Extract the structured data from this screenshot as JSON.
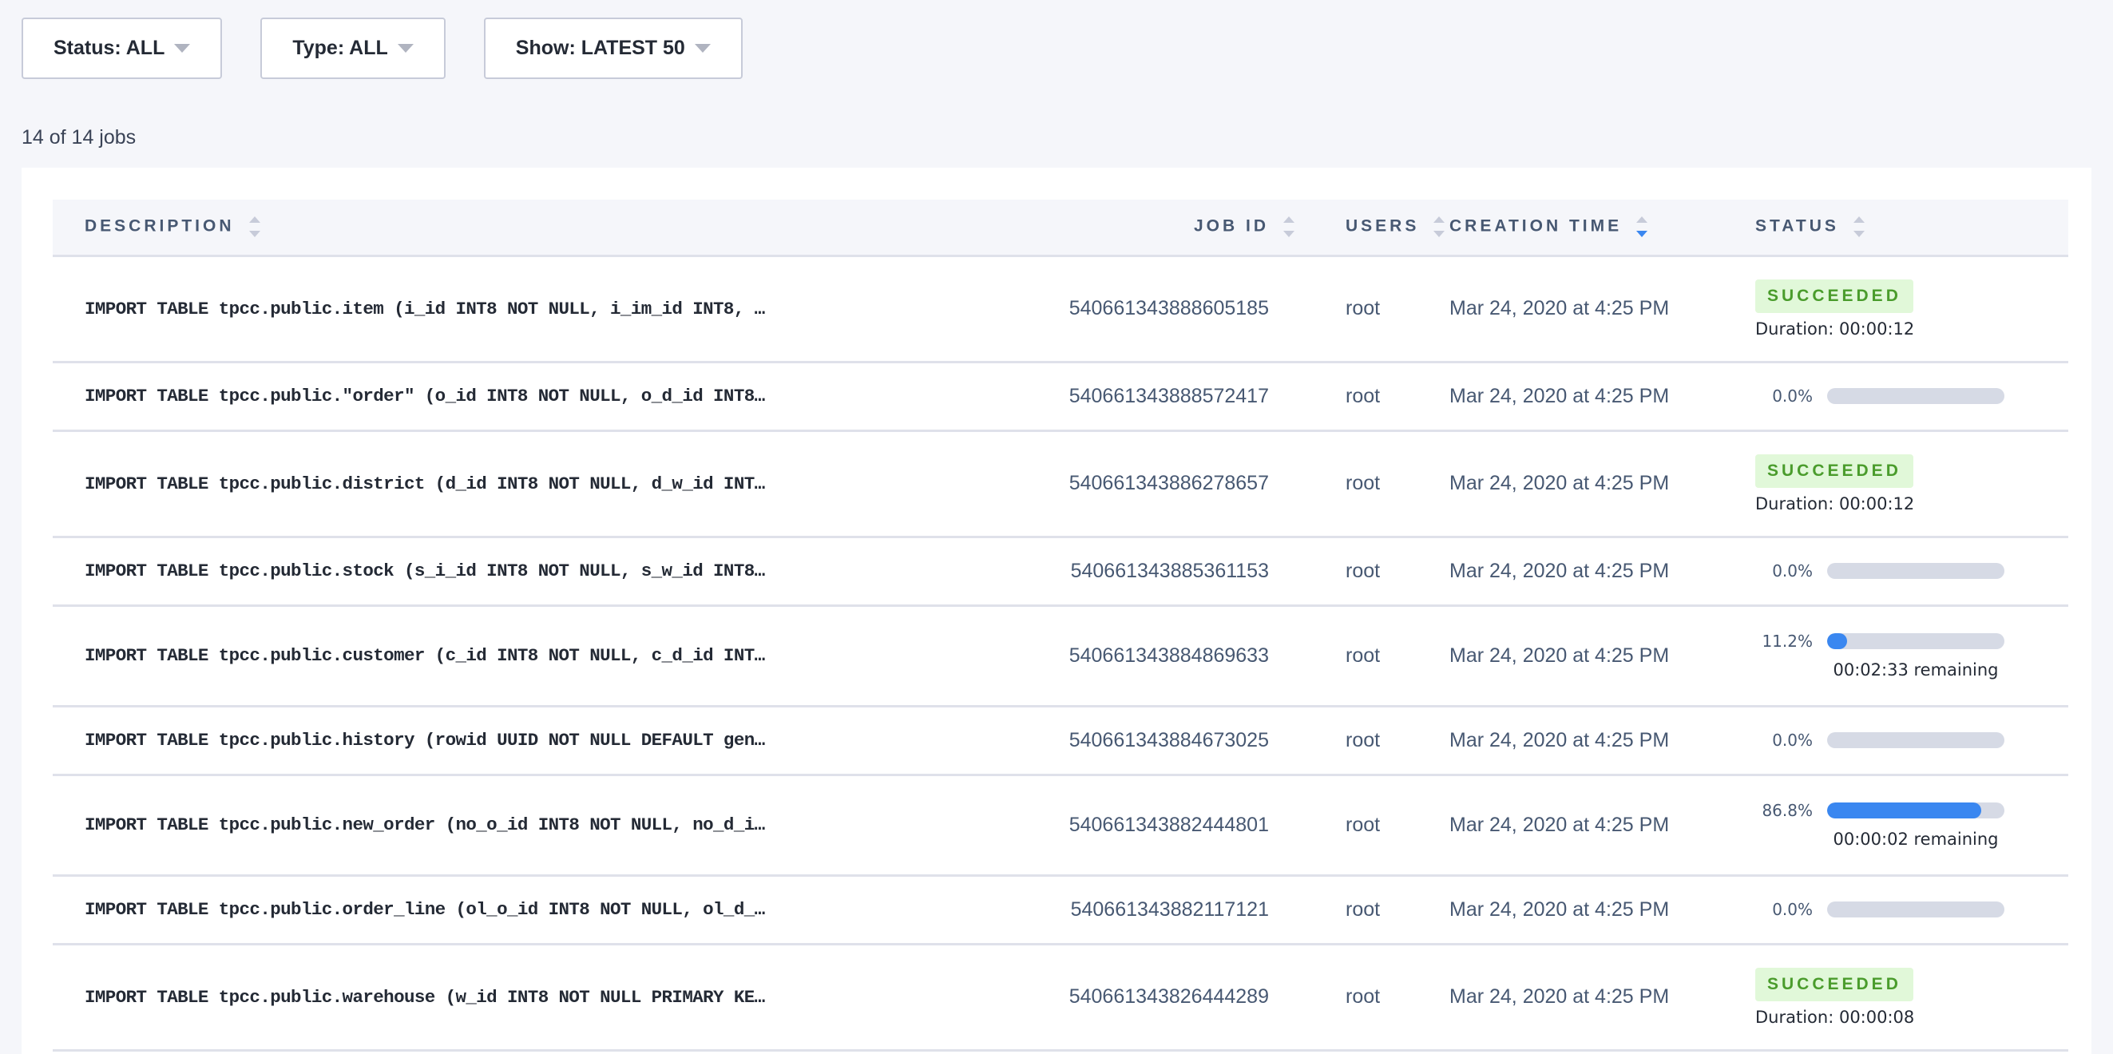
{
  "filters": [
    {
      "label": "Status: ALL"
    },
    {
      "label": "Type: ALL"
    },
    {
      "label": "Show: LATEST 50"
    }
  ],
  "job_count": "14 of 14 jobs",
  "table": {
    "columns": [
      {
        "label": "DESCRIPTION",
        "sort": "none"
      },
      {
        "label": "JOB ID",
        "sort": "none"
      },
      {
        "label": "USERS",
        "sort": "none"
      },
      {
        "label": "CREATION TIME",
        "sort": "descending"
      },
      {
        "label": "STATUS",
        "sort": "none"
      }
    ],
    "rows": [
      {
        "description": "IMPORT TABLE tpcc.public.item (i_id INT8 NOT NULL, i_im_id INT8, …",
        "job_id": "540661343888605185",
        "user": "root",
        "created": "Mar 24, 2020 at 4:25 PM",
        "status": "SUCCEEDED",
        "duration": "Duration: 00:00:12"
      },
      {
        "description": "IMPORT TABLE tpcc.public.\"order\" (o_id INT8 NOT NULL, o_d_id INT8…",
        "job_id": "540661343888572417",
        "user": "root",
        "created": "Mar 24, 2020 at 4:25 PM",
        "status": "running",
        "progress_label": "0.0%",
        "progress": 0.0
      },
      {
        "description": "IMPORT TABLE tpcc.public.district (d_id INT8 NOT NULL, d_w_id INT…",
        "job_id": "540661343886278657",
        "user": "root",
        "created": "Mar 24, 2020 at 4:25 PM",
        "status": "SUCCEEDED",
        "duration": "Duration: 00:00:12"
      },
      {
        "description": "IMPORT TABLE tpcc.public.stock (s_i_id INT8 NOT NULL, s_w_id INT8…",
        "job_id": "540661343885361153",
        "user": "root",
        "created": "Mar 24, 2020 at 4:25 PM",
        "status": "running",
        "progress_label": "0.0%",
        "progress": 0.0
      },
      {
        "description": "IMPORT TABLE tpcc.public.customer (c_id INT8 NOT NULL, c_d_id INT…",
        "job_id": "540661343884869633",
        "user": "root",
        "created": "Mar 24, 2020 at 4:25 PM",
        "status": "running",
        "progress_label": "11.2%",
        "progress": 11.2,
        "remaining": "00:02:33 remaining"
      },
      {
        "description": "IMPORT TABLE tpcc.public.history (rowid UUID NOT NULL DEFAULT gen…",
        "job_id": "540661343884673025",
        "user": "root",
        "created": "Mar 24, 2020 at 4:25 PM",
        "status": "running",
        "progress_label": "0.0%",
        "progress": 0.0
      },
      {
        "description": "IMPORT TABLE tpcc.public.new_order (no_o_id INT8 NOT NULL, no_d_i…",
        "job_id": "540661343882444801",
        "user": "root",
        "created": "Mar 24, 2020 at 4:25 PM",
        "status": "running",
        "progress_label": "86.8%",
        "progress": 86.8,
        "remaining": "00:00:02 remaining"
      },
      {
        "description": "IMPORT TABLE tpcc.public.order_line (ol_o_id INT8 NOT NULL, ol_d_…",
        "job_id": "540661343882117121",
        "user": "root",
        "created": "Mar 24, 2020 at 4:25 PM",
        "status": "running",
        "progress_label": "0.0%",
        "progress": 0.0
      },
      {
        "description": "IMPORT TABLE tpcc.public.warehouse (w_id INT8 NOT NULL PRIMARY KE…",
        "job_id": "540661343826444289",
        "user": "root",
        "created": "Mar 24, 2020 at 4:25 PM",
        "status": "SUCCEEDED",
        "duration": "Duration: 00:00:08"
      }
    ]
  },
  "colors": {
    "accent": "#3a87f0",
    "success_text": "#4a9c2c",
    "success_bg": "#e1f8d9",
    "bar_track": "#d6dae5"
  }
}
